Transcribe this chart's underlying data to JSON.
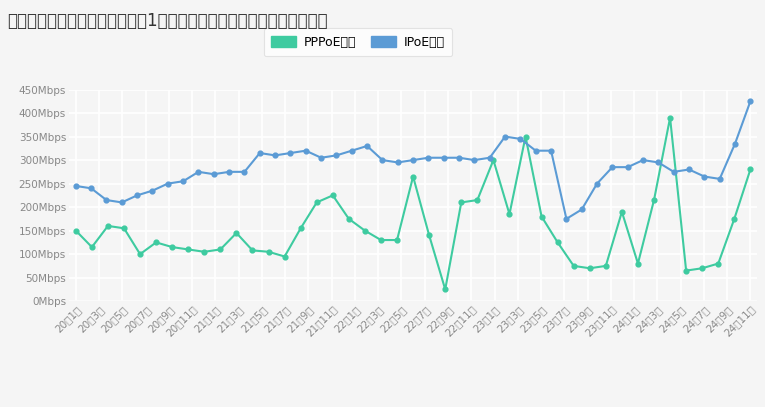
{
  "title": "ソフトバンク光の夜の時間帯の1ヶ月ごとの平均ダウンロード速度推移",
  "legend_pppoe": "PPPoE接続",
  "legend_ipoe": "IPoE接続",
  "color_pppoe": "#3ecba0",
  "color_ipoe": "#5b9bd5",
  "background_color": "#f5f5f5",
  "grid_color": "#e0e0e0",
  "ylim": [
    0,
    450
  ],
  "yticks": [
    0,
    50,
    100,
    150,
    200,
    250,
    300,
    350,
    400,
    450
  ],
  "ytick_labels": [
    "0Mbps",
    "50Mbps",
    "100Mbps",
    "150Mbps",
    "200Mbps",
    "250Mbps",
    "300Mbps",
    "350Mbps",
    "400Mbps",
    "450Mbps"
  ],
  "x_labels": [
    "20年1月",
    "20年3月",
    "20年5月",
    "20年7月",
    "20年9月",
    "20年11月",
    "21年1月",
    "21年3月",
    "21年5月",
    "21年7月",
    "21年9月",
    "21年11月",
    "22年1月",
    "22年3月",
    "22年5月",
    "22年7月",
    "22年9月",
    "22年11月",
    "23年1月",
    "23年3月",
    "23年5月",
    "23年7月",
    "23年9月",
    "23年11月",
    "24年1月",
    "24年3月",
    "24年5月",
    "24年7月",
    "24年9月",
    "24年11月"
  ],
  "pppoe_values": [
    150,
    115,
    160,
    155,
    100,
    125,
    115,
    110,
    105,
    110,
    145,
    108,
    105,
    95,
    155,
    210,
    225,
    175,
    150,
    130,
    130,
    265,
    140,
    25,
    210,
    215,
    300,
    185,
    350,
    180,
    125,
    75,
    70,
    75,
    190,
    80,
    215,
    390,
    65,
    70,
    80,
    175,
    280
  ],
  "ipoe_values": [
    245,
    240,
    215,
    210,
    225,
    235,
    250,
    255,
    275,
    270,
    275,
    275,
    315,
    310,
    315,
    320,
    305,
    310,
    320,
    330,
    300,
    295,
    300,
    305,
    305,
    305,
    300,
    305,
    350,
    345,
    320,
    320,
    175,
    195,
    250,
    285,
    285,
    300,
    295,
    275,
    280,
    265,
    260,
    335,
    425
  ],
  "title_fontsize": 12,
  "tick_fontsize": 7.5,
  "legend_fontsize": 9
}
